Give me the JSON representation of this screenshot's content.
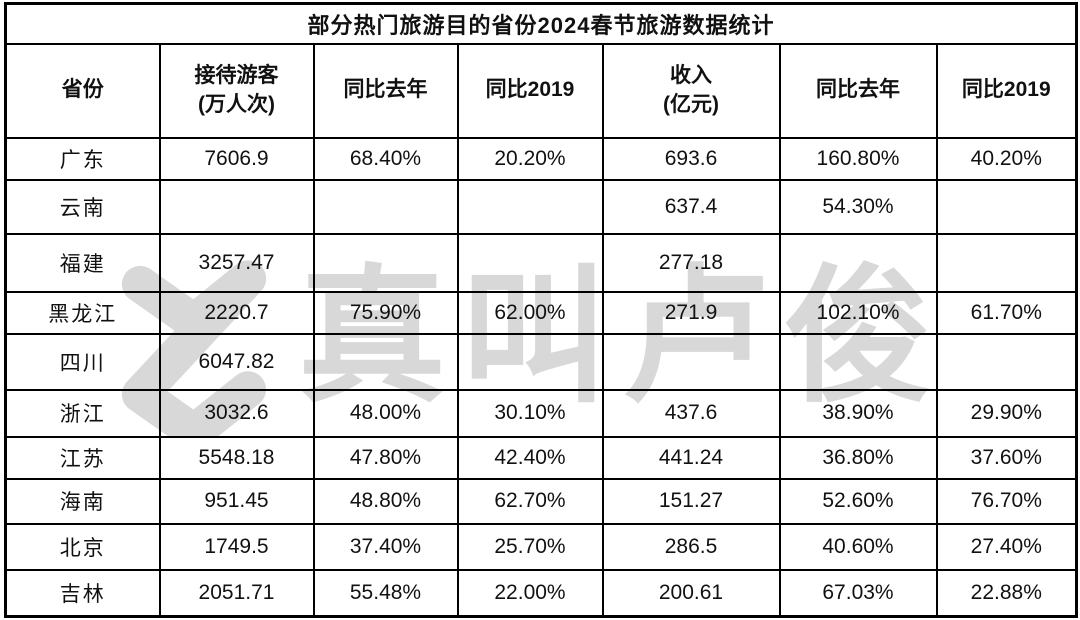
{
  "chart_data": {
    "type": "table",
    "title": "部分热门旅游目的省份2024春节旅游数据统计",
    "columns": [
      "省份",
      "接待游客\n(万人次)",
      "同比去年",
      "同比2019",
      "收入\n(亿元)",
      "同比去年",
      "同比2019"
    ],
    "rows": [
      [
        "广东",
        "7606.9",
        "68.40%",
        "20.20%",
        "693.6",
        "160.80%",
        "40.20%"
      ],
      [
        "云南",
        "",
        "",
        "",
        "637.4",
        "54.30%",
        ""
      ],
      [
        "福建",
        "3257.47",
        "",
        "",
        "277.18",
        "",
        ""
      ],
      [
        "黑龙江",
        "2220.7",
        "75.90%",
        "62.00%",
        "271.9",
        "102.10%",
        "61.70%"
      ],
      [
        "四川",
        "6047.82",
        "",
        "",
        "",
        "",
        ""
      ],
      [
        "浙江",
        "3032.6",
        "48.00%",
        "30.10%",
        "437.6",
        "38.90%",
        "29.90%"
      ],
      [
        "江苏",
        "5548.18",
        "47.80%",
        "42.40%",
        "441.24",
        "36.80%",
        "37.60%"
      ],
      [
        "海南",
        "951.45",
        "48.80%",
        "62.70%",
        "151.27",
        "52.60%",
        "76.70%"
      ],
      [
        "北京",
        "1749.5",
        "37.40%",
        "25.70%",
        "286.5",
        "40.60%",
        "27.40%"
      ],
      [
        "吉林",
        "2051.71",
        "55.48%",
        "22.00%",
        "200.61",
        "67.03%",
        "22.88%"
      ]
    ]
  },
  "watermark": {
    "text": "真叫卢俊",
    "logo": "stylized-Z",
    "color": "#d8d8d8"
  },
  "colors": {
    "background": "#ffffff",
    "border": "#000000",
    "text": "#111111",
    "watermark": "#d8d8d8"
  }
}
